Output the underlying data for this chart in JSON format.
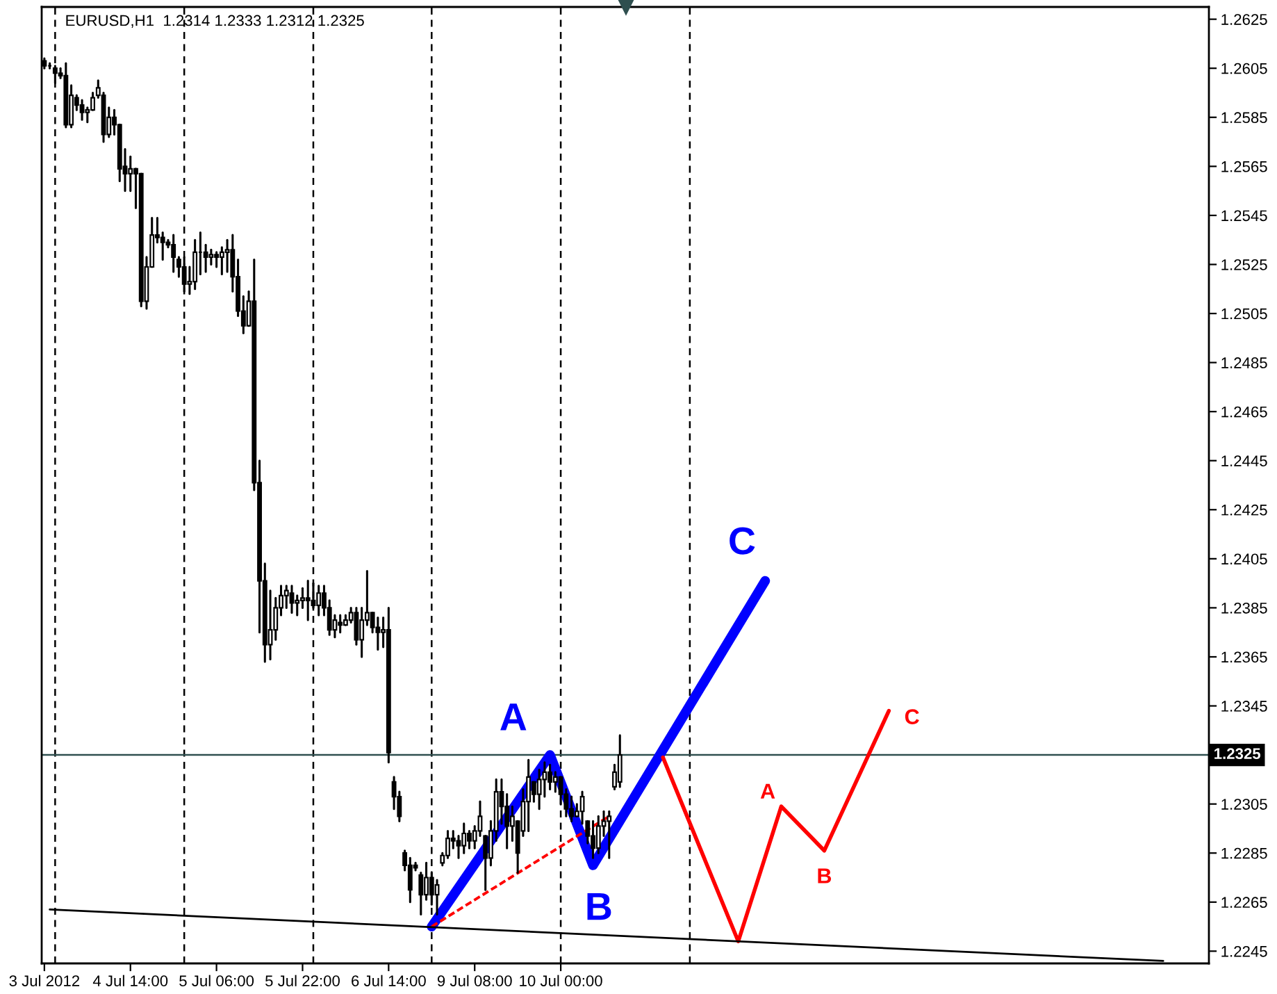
{
  "chart_data": {
    "type": "candlestick",
    "title": "EURUSD,H1  1.2314 1.2333 1.2312 1.2325",
    "categories": [
      "3 Jul 2012",
      null,
      null,
      null,
      null,
      null,
      null,
      null,
      null,
      null,
      null,
      null,
      null,
      null,
      null,
      null,
      "4 Jul 14:00",
      null,
      null,
      null,
      null,
      null,
      null,
      null,
      null,
      null,
      null,
      null,
      null,
      null,
      null,
      null,
      "5 Jul 06:00",
      null,
      null,
      null,
      null,
      null,
      null,
      null,
      null,
      null,
      null,
      null,
      null,
      null,
      null,
      null,
      "5 Jul 22:00",
      null,
      null,
      null,
      null,
      null,
      null,
      null,
      null,
      null,
      null,
      null,
      null,
      null,
      null,
      null,
      "6 Jul 14:00",
      null,
      null,
      null,
      null,
      null,
      null,
      null,
      null,
      null,
      null,
      null,
      null,
      null,
      null,
      null,
      "9 Jul 08:00",
      null,
      null,
      null,
      null,
      null,
      null,
      null,
      null,
      null,
      null,
      null,
      null,
      null,
      null,
      null,
      "10 Jul 00:00",
      null,
      null,
      null,
      null,
      null,
      null,
      null,
      null,
      null,
      null,
      null,
      null,
      null,
      null,
      null,
      null,
      null,
      null,
      null,
      null,
      null,
      null,
      null,
      null,
      null,
      null,
      null,
      null,
      null,
      null,
      null,
      null,
      null,
      null,
      null,
      null,
      null,
      null,
      null,
      null,
      null,
      null,
      null,
      null,
      null,
      null,
      null,
      null,
      null,
      null,
      null,
      null,
      null,
      null,
      null,
      null,
      null,
      null,
      null,
      null,
      null,
      null,
      null,
      null,
      null,
      null,
      null,
      null,
      null,
      null,
      null,
      null,
      null,
      null,
      null,
      null,
      null,
      null,
      null,
      null,
      null,
      null,
      null,
      null,
      null,
      null,
      null,
      null,
      null,
      null,
      null,
      null,
      null,
      null,
      null,
      null,
      null,
      null,
      null,
      null,
      null,
      null,
      null,
      null,
      null,
      null,
      null,
      null,
      null,
      null,
      null,
      null,
      null,
      null,
      null,
      null,
      null,
      null,
      null,
      null
    ],
    "ohlc": [
      [
        1.2608,
        1.2609,
        1.2605,
        1.2606
      ],
      [
        1.2606,
        1.2607,
        1.2605,
        1.2606
      ],
      [
        1.2605,
        1.2606,
        1.2599,
        1.2603
      ],
      [
        1.2603,
        1.2605,
        1.2601,
        1.2602
      ],
      [
        1.2602,
        1.2607,
        1.2581,
        1.2582
      ],
      [
        1.2582,
        1.2598,
        1.2581,
        1.2594
      ],
      [
        1.2593,
        1.2594,
        1.2588,
        1.259
      ],
      [
        1.259,
        1.2592,
        1.2584,
        1.2587
      ],
      [
        1.2587,
        1.2589,
        1.2583,
        1.2588
      ],
      [
        1.2588,
        1.2595,
        1.2588,
        1.2593
      ],
      [
        1.2594,
        1.26,
        1.2593,
        1.2597
      ],
      [
        1.2594,
        1.2595,
        1.2575,
        1.2578
      ],
      [
        1.2578,
        1.2589,
        1.2577,
        1.2585
      ],
      [
        1.2585,
        1.2588,
        1.2578,
        1.2582
      ],
      [
        1.2582,
        1.2582,
        1.2559,
        1.2564
      ],
      [
        1.2565,
        1.2572,
        1.2555,
        1.2562
      ],
      [
        1.2562,
        1.2569,
        1.2555,
        1.2564
      ],
      [
        1.2564,
        1.2564,
        1.2548,
        1.2562
      ],
      [
        1.2562,
        1.2562,
        1.2508,
        1.251
      ],
      [
        1.251,
        1.2528,
        1.2507,
        1.2524
      ],
      [
        1.2524,
        1.2544,
        1.2524,
        1.2537
      ],
      [
        1.2537,
        1.2544,
        1.2534,
        1.2536
      ],
      [
        1.2536,
        1.2538,
        1.2527,
        1.2534
      ],
      [
        1.2534,
        1.2535,
        1.2532,
        1.2533
      ],
      [
        1.2533,
        1.2537,
        1.2522,
        1.2528
      ],
      [
        1.2527,
        1.2528,
        1.252,
        1.2524
      ],
      [
        1.2524,
        1.2528,
        1.2514,
        1.2517
      ],
      [
        1.2517,
        1.2524,
        1.2513,
        1.2518
      ],
      [
        1.2518,
        1.2535,
        1.2515,
        1.253
      ],
      [
        1.253,
        1.2538,
        1.2521,
        1.253
      ],
      [
        1.253,
        1.2533,
        1.2522,
        1.2528
      ],
      [
        1.2528,
        1.2531,
        1.2525,
        1.2529
      ],
      [
        1.2529,
        1.253,
        1.2524,
        1.2528
      ],
      [
        1.2528,
        1.2532,
        1.2521,
        1.253
      ],
      [
        1.253,
        1.2535,
        1.2522,
        1.2531
      ],
      [
        1.2531,
        1.2537,
        1.2514,
        1.252
      ],
      [
        1.252,
        1.2527,
        1.2504,
        1.2506
      ],
      [
        1.2506,
        1.2512,
        1.2497,
        1.25
      ],
      [
        1.25,
        1.2514,
        1.25,
        1.251
      ],
      [
        1.251,
        1.2527,
        1.2433,
        1.2436
      ],
      [
        1.2436,
        1.2445,
        1.2375,
        1.2396
      ],
      [
        1.2396,
        1.2403,
        1.2363,
        1.237
      ],
      [
        1.237,
        1.2392,
        1.2364,
        1.2376
      ],
      [
        1.2376,
        1.2389,
        1.2372,
        1.2385
      ],
      [
        1.2385,
        1.2394,
        1.2382,
        1.239
      ],
      [
        1.239,
        1.2394,
        1.2385,
        1.2392
      ],
      [
        1.2391,
        1.2394,
        1.2383,
        1.2387
      ],
      [
        1.2387,
        1.239,
        1.2382,
        1.2388
      ],
      [
        1.2388,
        1.2393,
        1.2385,
        1.2389
      ],
      [
        1.2389,
        1.2396,
        1.238,
        1.2388
      ],
      [
        1.2388,
        1.2395,
        1.2385,
        1.2386
      ],
      [
        1.2386,
        1.2394,
        1.2382,
        1.2391
      ],
      [
        1.2391,
        1.2394,
        1.2382,
        1.2385
      ],
      [
        1.2385,
        1.2388,
        1.2374,
        1.2376
      ],
      [
        1.2376,
        1.2382,
        1.2373,
        1.238
      ],
      [
        1.2379,
        1.2382,
        1.2375,
        1.2378
      ],
      [
        1.2378,
        1.2382,
        1.2378,
        1.238
      ],
      [
        1.238,
        1.2385,
        1.2379,
        1.2383
      ],
      [
        1.2383,
        1.2385,
        1.237,
        1.2372
      ],
      [
        1.2372,
        1.2385,
        1.2365,
        1.238
      ],
      [
        1.238,
        1.24,
        1.2378,
        1.2383
      ],
      [
        1.2383,
        1.2383,
        1.2375,
        1.2377
      ],
      [
        1.2377,
        1.2381,
        1.2368,
        1.2375
      ],
      [
        1.2375,
        1.2381,
        1.2369,
        1.2376
      ],
      [
        1.2376,
        1.2385,
        1.2322,
        1.2326
      ],
      [
        1.2314,
        1.2316,
        1.2303,
        1.2308
      ],
      [
        1.2308,
        1.231,
        1.2298,
        1.23
      ],
      [
        1.2285,
        1.2286,
        1.2278,
        1.228
      ],
      [
        1.228,
        1.2283,
        1.2265,
        1.227
      ],
      [
        1.228,
        1.2281,
        1.2278,
        1.2279
      ],
      [
        1.2276,
        1.2277,
        1.226,
        1.2268
      ],
      [
        1.2268,
        1.2281,
        1.2266,
        1.2275
      ],
      [
        1.2275,
        1.2277,
        1.2264,
        1.2268
      ],
      [
        1.2268,
        1.2274,
        1.226,
        1.2272
      ],
      [
        1.2281,
        1.2285,
        1.228,
        1.2284
      ],
      [
        1.2284,
        1.2294,
        1.2283,
        1.2291
      ],
      [
        1.2291,
        1.2294,
        1.2287,
        1.229
      ],
      [
        1.229,
        1.2292,
        1.2283,
        1.2288
      ],
      [
        1.2288,
        1.2297,
        1.2285,
        1.2293
      ],
      [
        1.2293,
        1.2294,
        1.2287,
        1.229
      ],
      [
        1.229,
        1.2296,
        1.2287,
        1.2294
      ],
      [
        1.2294,
        1.2306,
        1.2292,
        1.23
      ],
      [
        1.2292,
        1.2292,
        1.227,
        1.2283
      ],
      [
        1.2283,
        1.2298,
        1.228,
        1.2294
      ],
      [
        1.2294,
        1.2315,
        1.229,
        1.231
      ],
      [
        1.231,
        1.2315,
        1.2297,
        1.2304
      ],
      [
        1.2304,
        1.2309,
        1.2287,
        1.2296
      ],
      [
        1.2296,
        1.2304,
        1.229,
        1.23
      ],
      [
        1.2298,
        1.2298,
        1.2277,
        1.2285
      ],
      [
        1.2294,
        1.2311,
        1.2292,
        1.2306
      ],
      [
        1.2306,
        1.2323,
        1.2294,
        1.2316
      ],
      [
        1.2314,
        1.2314,
        1.2306,
        1.2309
      ],
      [
        1.2309,
        1.2319,
        1.2303,
        1.2315
      ],
      [
        1.2315,
        1.2322,
        1.2308,
        1.2318
      ],
      [
        1.2318,
        1.2321,
        1.2311,
        1.2314
      ],
      [
        1.2314,
        1.2318,
        1.231,
        1.2316
      ],
      [
        1.2316,
        1.2316,
        1.2305,
        1.2309
      ],
      [
        1.2309,
        1.2311,
        1.23,
        1.2303
      ],
      [
        1.2303,
        1.2308,
        1.2298,
        1.23
      ],
      [
        1.23,
        1.2305,
        1.23,
        1.2302
      ],
      [
        1.2302,
        1.231,
        1.2297,
        1.2308
      ],
      [
        1.2298,
        1.2298,
        1.2289,
        1.2292
      ],
      [
        1.2292,
        1.2298,
        1.2283,
        1.2287
      ],
      [
        1.2287,
        1.23,
        1.2285,
        1.2296
      ],
      [
        1.2296,
        1.2302,
        1.2292,
        1.2298
      ],
      [
        1.2298,
        1.2302,
        1.2283,
        1.23
      ],
      [
        1.2312,
        1.2321,
        1.2311,
        1.2318
      ],
      [
        1.2314,
        1.2333,
        1.2312,
        1.2325
      ],
      null,
      null,
      null,
      null,
      null,
      null,
      null,
      null,
      null,
      null,
      null,
      null,
      null,
      null,
      null,
      null,
      null,
      null,
      null,
      null,
      null,
      null,
      null,
      null,
      null,
      null,
      null,
      null,
      null,
      null,
      null,
      null,
      null,
      null,
      null,
      null,
      null,
      null,
      null,
      null,
      null,
      null,
      null,
      null,
      null,
      null,
      null,
      null,
      null,
      null,
      null,
      null,
      null,
      null,
      null,
      null,
      null,
      null,
      null,
      null,
      null,
      null,
      null,
      null,
      null,
      null,
      null,
      null,
      null,
      null,
      null,
      null,
      null,
      null,
      null,
      null,
      null,
      null,
      null,
      null,
      null,
      null,
      null,
      null,
      null,
      null,
      null,
      null,
      null,
      null,
      null,
      null,
      null,
      null,
      null,
      null,
      null,
      null,
      null,
      null,
      null,
      null,
      null,
      null,
      null,
      null,
      null,
      null,
      null
    ],
    "color": "#000000",
    "series": [
      {
        "type": "line",
        "color": "#0000ff",
        "line_style": "solid",
        "values": [
          null,
          null,
          null,
          null,
          null,
          null,
          null,
          null,
          null,
          null,
          null,
          null,
          null,
          null,
          null,
          null,
          null,
          null,
          null,
          null,
          null,
          null,
          null,
          null,
          null,
          null,
          null,
          null,
          null,
          null,
          null,
          null,
          null,
          null,
          null,
          null,
          null,
          null,
          null,
          null,
          null,
          null,
          null,
          null,
          null,
          null,
          null,
          null,
          null,
          null,
          null,
          null,
          null,
          null,
          null,
          null,
          null,
          null,
          null,
          null,
          null,
          null,
          null,
          null,
          null,
          null,
          null,
          null,
          null,
          null,
          null,
          null,
          1.2255,
          null,
          null,
          null,
          null,
          null,
          null,
          null,
          null,
          null,
          null,
          null,
          null,
          null,
          null,
          null,
          null,
          null,
          null,
          null,
          null,
          null,
          1.2325,
          null,
          null,
          null,
          null,
          null,
          null,
          null,
          1.228,
          null,
          null,
          null,
          null,
          null,
          null,
          null,
          null,
          null,
          null,
          null,
          null,
          null,
          null,
          null,
          null,
          null,
          null,
          null,
          null,
          null,
          null,
          null,
          null,
          null,
          null,
          null,
          null,
          null,
          null,
          null,
          1.2396,
          null,
          null,
          null,
          null,
          null,
          null,
          null,
          null,
          null,
          null,
          null,
          null,
          null,
          null,
          null,
          null,
          null,
          null,
          null,
          null,
          null,
          null,
          null,
          null,
          null,
          null,
          null,
          null,
          null,
          null,
          null,
          null,
          null,
          null,
          null,
          null,
          null,
          null,
          null,
          null,
          null,
          null,
          null,
          null,
          null,
          null,
          null,
          null,
          null,
          null,
          null,
          null,
          null,
          null,
          null,
          null,
          null,
          null,
          null,
          null,
          null,
          null,
          null,
          null,
          null,
          null,
          null,
          null,
          null,
          null,
          null,
          null,
          null,
          null,
          null,
          null,
          null,
          null,
          null,
          null,
          null,
          null
        ]
      },
      {
        "type": "line",
        "color": "#ff0000",
        "line_style": "solid",
        "values": [
          null,
          null,
          null,
          null,
          null,
          null,
          null,
          null,
          null,
          null,
          null,
          null,
          null,
          null,
          null,
          null,
          null,
          null,
          null,
          null,
          null,
          null,
          null,
          null,
          null,
          null,
          null,
          null,
          null,
          null,
          null,
          null,
          null,
          null,
          null,
          null,
          null,
          null,
          null,
          null,
          null,
          null,
          null,
          null,
          null,
          null,
          null,
          null,
          null,
          null,
          null,
          null,
          null,
          null,
          null,
          null,
          null,
          null,
          null,
          null,
          null,
          null,
          null,
          null,
          null,
          null,
          null,
          null,
          null,
          null,
          null,
          null,
          null,
          null,
          null,
          null,
          null,
          null,
          null,
          null,
          null,
          null,
          null,
          null,
          null,
          null,
          null,
          null,
          null,
          null,
          null,
          null,
          null,
          null,
          null,
          null,
          null,
          null,
          null,
          null,
          null,
          null,
          null,
          null,
          null,
          null,
          null,
          null,
          null,
          null,
          null,
          null,
          null,
          null,
          null,
          1.2324,
          null,
          null,
          null,
          null,
          null,
          null,
          null,
          null,
          null,
          null,
          null,
          null,
          null,
          1.2249,
          null,
          null,
          null,
          null,
          null,
          null,
          null,
          1.2304,
          null,
          null,
          null,
          null,
          null,
          null,
          null,
          1.2286,
          null,
          null,
          null,
          null,
          null,
          null,
          null,
          null,
          null,
          null,
          null,
          1.2343,
          null,
          null,
          null,
          null,
          null,
          null,
          null,
          null,
          null,
          null,
          null,
          null,
          null,
          null,
          null,
          null,
          null,
          null,
          null,
          null,
          null,
          null,
          null,
          null,
          null,
          null,
          null,
          null,
          null,
          null,
          null,
          null,
          null,
          null,
          null,
          null,
          null,
          null,
          null,
          null,
          null,
          null,
          null,
          null,
          null,
          null,
          null,
          null,
          null,
          null,
          null,
          null,
          null,
          null,
          null,
          null,
          null,
          null,
          null
        ]
      },
      {
        "type": "line",
        "color": "#ff0000",
        "line_style": "dashed",
        "values": [
          null,
          null,
          null,
          null,
          null,
          null,
          null,
          null,
          null,
          null,
          null,
          null,
          null,
          null,
          null,
          null,
          null,
          null,
          null,
          null,
          null,
          null,
          null,
          null,
          null,
          null,
          null,
          null,
          null,
          null,
          null,
          null,
          null,
          null,
          null,
          null,
          null,
          null,
          null,
          null,
          null,
          null,
          null,
          null,
          null,
          null,
          null,
          null,
          null,
          null,
          null,
          null,
          null,
          null,
          null,
          null,
          null,
          null,
          null,
          null,
          null,
          null,
          null,
          null,
          null,
          null,
          null,
          null,
          null,
          null,
          null,
          null,
          1.2255,
          null,
          null,
          null,
          null,
          null,
          null,
          null,
          null,
          null,
          null,
          null,
          null,
          null,
          null,
          null,
          null,
          null,
          null,
          null,
          null,
          null,
          null,
          null,
          null,
          null,
          null,
          null,
          null,
          null,
          null,
          null,
          null,
          1.23,
          null,
          null,
          null,
          null,
          null,
          null,
          null,
          null,
          null,
          null,
          null,
          null,
          null,
          null,
          null,
          null,
          null,
          null,
          null,
          null,
          null,
          null,
          null,
          null,
          null,
          null,
          null,
          null,
          null,
          null,
          null,
          null,
          null,
          null,
          null,
          null,
          null,
          null,
          null,
          null,
          null,
          null,
          null,
          null,
          null,
          null,
          null,
          null,
          null,
          null,
          null,
          null,
          null,
          null,
          null,
          null,
          null,
          null,
          null,
          null,
          null,
          null,
          null,
          null,
          null,
          null,
          null,
          null,
          null,
          null,
          null,
          null,
          null,
          null,
          null,
          null,
          null,
          null,
          null,
          null,
          null,
          null,
          null,
          null,
          null,
          null,
          null,
          null,
          null,
          null,
          null,
          null,
          null,
          null,
          null,
          null,
          null,
          null,
          null,
          null,
          null,
          null,
          null,
          null,
          null,
          null,
          null,
          null,
          null,
          null,
          null
        ]
      },
      {
        "type": "line",
        "color": "#000000",
        "line_style": "solid",
        "values": [
          null,
          1.2262,
          null,
          null,
          null,
          null,
          null,
          null,
          null,
          null,
          null,
          null,
          null,
          null,
          null,
          null,
          null,
          null,
          null,
          null,
          null,
          null,
          null,
          null,
          null,
          null,
          null,
          null,
          null,
          null,
          null,
          null,
          null,
          null,
          null,
          null,
          null,
          null,
          null,
          null,
          null,
          null,
          null,
          null,
          null,
          null,
          null,
          null,
          null,
          null,
          null,
          null,
          null,
          null,
          null,
          null,
          null,
          null,
          null,
          null,
          null,
          null,
          null,
          null,
          null,
          null,
          null,
          null,
          null,
          null,
          null,
          null,
          null,
          null,
          null,
          null,
          null,
          null,
          null,
          null,
          null,
          null,
          null,
          null,
          null,
          null,
          null,
          null,
          null,
          null,
          null,
          null,
          null,
          null,
          null,
          null,
          null,
          null,
          null,
          null,
          null,
          null,
          null,
          null,
          null,
          null,
          null,
          null,
          null,
          null,
          null,
          null,
          null,
          null,
          null,
          null,
          null,
          null,
          null,
          null,
          null,
          null,
          null,
          null,
          null,
          null,
          null,
          null,
          null,
          null,
          null,
          null,
          null,
          null,
          null,
          null,
          null,
          null,
          null,
          null,
          null,
          null,
          null,
          null,
          null,
          null,
          null,
          null,
          null,
          null,
          null,
          null,
          null,
          null,
          null,
          null,
          null,
          null,
          null,
          null,
          null,
          null,
          null,
          null,
          null,
          null,
          null,
          null,
          null,
          null,
          null,
          null,
          null,
          null,
          null,
          null,
          null,
          null,
          null,
          null,
          null,
          null,
          null,
          null,
          null,
          null,
          null,
          null,
          null,
          null,
          null,
          null,
          null,
          null,
          null,
          null,
          null,
          null,
          null,
          null,
          null,
          null,
          null,
          null,
          null,
          null,
          null,
          null,
          1.2241,
          null,
          null,
          null,
          null,
          null,
          null,
          null,
          null
        ]
      }
    ],
    "ref_lines": [
      {
        "axis": "y",
        "value": 1.2325,
        "label": "1.2325",
        "color": "#2f4f4f",
        "line_style": "solid"
      }
    ],
    "annotations": [
      "A",
      "B",
      "C",
      "A",
      "B",
      "C"
    ],
    "ylim": [
      1.224,
      1.263
    ],
    "yticks": [
      1.2245,
      1.2265,
      1.2285,
      1.2305,
      {
        "value": 1.2325,
        "label": null
      },
      1.2345,
      1.2365,
      1.2385,
      1.2405,
      1.2425,
      1.2445,
      1.2465,
      1.2485,
      1.2505,
      1.2525,
      1.2545,
      1.2565,
      1.2585,
      1.2605,
      1.2625
    ],
    "grid": false,
    "legend": false
  }
}
